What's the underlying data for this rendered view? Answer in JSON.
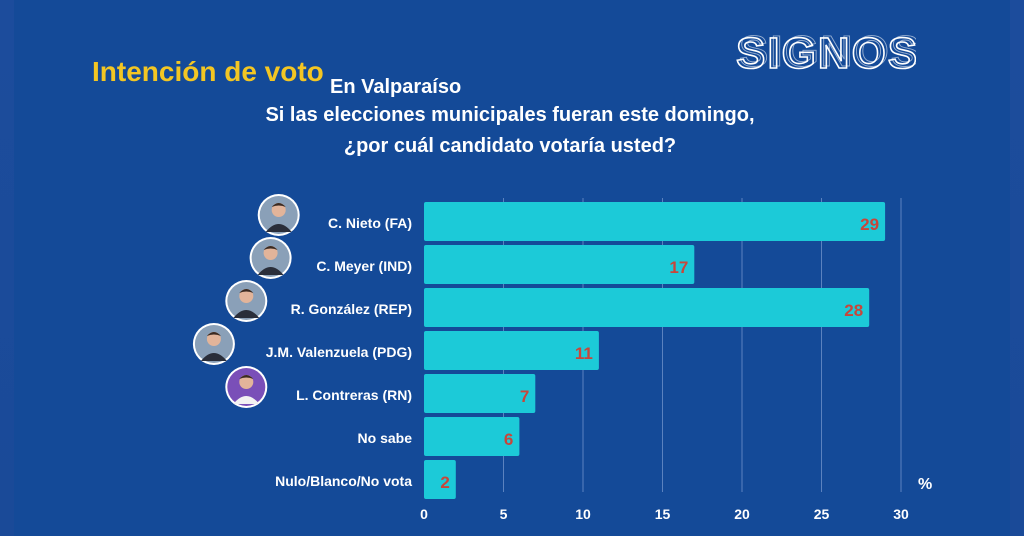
{
  "header": {
    "title": "Intención de voto",
    "location": "En Valparaíso",
    "question_line1": "Si las elecciones municipales fueran este domingo,",
    "question_line2": "¿por cuál candidato votaría usted?",
    "brand": "SIGNOS"
  },
  "colors": {
    "background": "#144a98",
    "bar": "#1ccad8",
    "value_label": "#c8463a",
    "title": "#f3c623",
    "text": "#ffffff"
  },
  "chart_data": {
    "type": "bar",
    "orientation": "horizontal",
    "categories": [
      "C. Nieto (FA)",
      "C. Meyer (IND)",
      "R. González (REP)",
      "J.M. Valenzuela (PDG)",
      "L. Contreras (RN)",
      "No sabe",
      "Nulo/Blanco/No vota"
    ],
    "values": [
      29,
      17,
      28,
      11,
      7,
      6,
      2
    ],
    "avatars": [
      true,
      true,
      true,
      true,
      true,
      false,
      false
    ],
    "xlim": [
      0,
      30
    ],
    "xticks": [
      "0",
      "5",
      "10",
      "15",
      "20",
      "25",
      "30"
    ],
    "xlabel": "%",
    "grid": true
  }
}
